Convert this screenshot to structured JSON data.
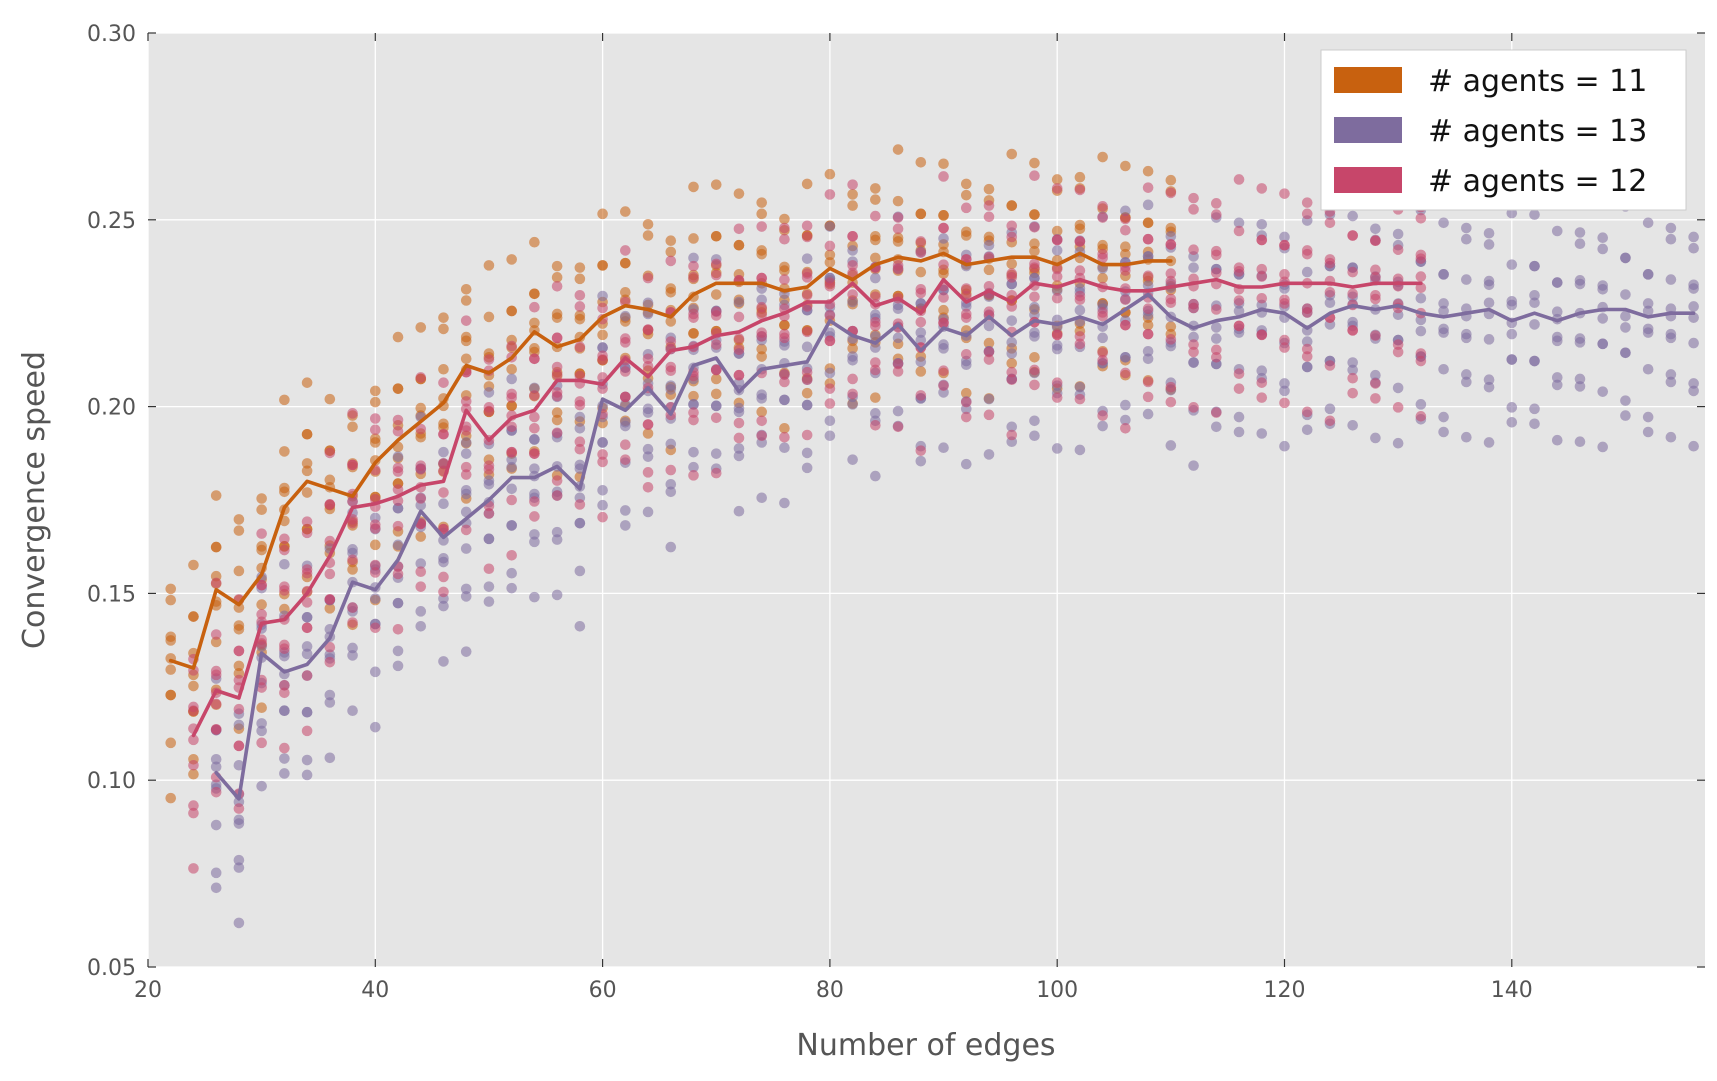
{
  "chart_data": {
    "type": "line",
    "title": "",
    "xlabel": "Number of edges",
    "ylabel": "Convergence speed",
    "xlim": [
      20,
      157
    ],
    "ylim": [
      0.05,
      0.3
    ],
    "xticks": [
      20,
      40,
      60,
      80,
      100,
      120,
      140
    ],
    "yticks": [
      0.05,
      0.1,
      0.15,
      0.2,
      0.25,
      0.3
    ],
    "xtick_labels": [
      "20",
      "40",
      "60",
      "80",
      "100",
      "120",
      "140"
    ],
    "ytick_labels": [
      "0.05",
      "0.10",
      "0.15",
      "0.20",
      "0.25",
      "0.30"
    ],
    "grid": true,
    "background": "#e5e5e5",
    "legend_position": "top-right",
    "series": [
      {
        "name": "# agents = 11",
        "color": "#c8610f",
        "x": [
          22,
          24,
          26,
          28,
          30,
          32,
          34,
          36,
          38,
          40,
          42,
          44,
          46,
          48,
          50,
          52,
          54,
          56,
          58,
          60,
          62,
          64,
          66,
          68,
          70,
          72,
          74,
          76,
          78,
          80,
          82,
          84,
          86,
          88,
          90,
          92,
          94,
          96,
          98,
          100,
          102,
          104,
          106,
          108,
          110
        ],
        "y": [
          0.132,
          0.13,
          0.151,
          0.147,
          0.155,
          0.173,
          0.18,
          0.178,
          0.176,
          0.185,
          0.191,
          0.196,
          0.201,
          0.211,
          0.209,
          0.213,
          0.22,
          0.216,
          0.218,
          0.224,
          0.227,
          0.226,
          0.224,
          0.23,
          0.233,
          0.233,
          0.233,
          0.231,
          0.232,
          0.237,
          0.234,
          0.238,
          0.24,
          0.239,
          0.241,
          0.238,
          0.239,
          0.24,
          0.24,
          0.238,
          0.241,
          0.238,
          0.238,
          0.239,
          0.239
        ]
      },
      {
        "name": "# agents = 13",
        "color": "#7e6c9e",
        "x": [
          26,
          28,
          30,
          32,
          34,
          36,
          38,
          40,
          42,
          44,
          46,
          48,
          50,
          52,
          54,
          56,
          58,
          60,
          62,
          64,
          66,
          68,
          70,
          72,
          74,
          76,
          78,
          80,
          82,
          84,
          86,
          88,
          90,
          92,
          94,
          96,
          98,
          100,
          102,
          104,
          106,
          108,
          110,
          112,
          114,
          116,
          118,
          120,
          122,
          124,
          126,
          128,
          130,
          132,
          134,
          136,
          138,
          140,
          142,
          144,
          146,
          148,
          150,
          152,
          154,
          156
        ],
        "y": [
          0.102,
          0.095,
          0.134,
          0.129,
          0.131,
          0.138,
          0.153,
          0.151,
          0.159,
          0.172,
          0.165,
          0.17,
          0.175,
          0.181,
          0.181,
          0.184,
          0.178,
          0.202,
          0.199,
          0.205,
          0.198,
          0.211,
          0.213,
          0.204,
          0.21,
          0.211,
          0.212,
          0.223,
          0.219,
          0.217,
          0.222,
          0.215,
          0.221,
          0.219,
          0.224,
          0.219,
          0.223,
          0.222,
          0.224,
          0.222,
          0.226,
          0.23,
          0.224,
          0.221,
          0.223,
          0.224,
          0.226,
          0.225,
          0.221,
          0.225,
          0.227,
          0.226,
          0.227,
          0.225,
          0.224,
          0.225,
          0.226,
          0.223,
          0.225,
          0.223,
          0.225,
          0.226,
          0.226,
          0.224,
          0.225,
          0.225
        ]
      },
      {
        "name": "# agents = 12",
        "color": "#c7466a",
        "x": [
          24,
          26,
          28,
          30,
          32,
          34,
          36,
          38,
          40,
          42,
          44,
          46,
          48,
          50,
          52,
          54,
          56,
          58,
          60,
          62,
          64,
          66,
          68,
          70,
          72,
          74,
          76,
          78,
          80,
          82,
          84,
          86,
          88,
          90,
          92,
          94,
          96,
          98,
          100,
          102,
          104,
          106,
          108,
          110,
          112,
          114,
          116,
          118,
          120,
          122,
          124,
          126,
          128,
          130,
          132
        ],
        "y": [
          0.112,
          0.124,
          0.122,
          0.142,
          0.143,
          0.15,
          0.16,
          0.173,
          0.174,
          0.176,
          0.179,
          0.18,
          0.199,
          0.191,
          0.197,
          0.199,
          0.207,
          0.207,
          0.206,
          0.213,
          0.208,
          0.215,
          0.216,
          0.219,
          0.22,
          0.223,
          0.225,
          0.228,
          0.228,
          0.233,
          0.227,
          0.229,
          0.225,
          0.234,
          0.228,
          0.231,
          0.228,
          0.233,
          0.232,
          0.234,
          0.232,
          0.231,
          0.231,
          0.232,
          0.233,
          0.234,
          0.232,
          0.232,
          0.233,
          0.233,
          0.233,
          0.232,
          0.233,
          0.233,
          0.233
        ]
      }
    ]
  }
}
